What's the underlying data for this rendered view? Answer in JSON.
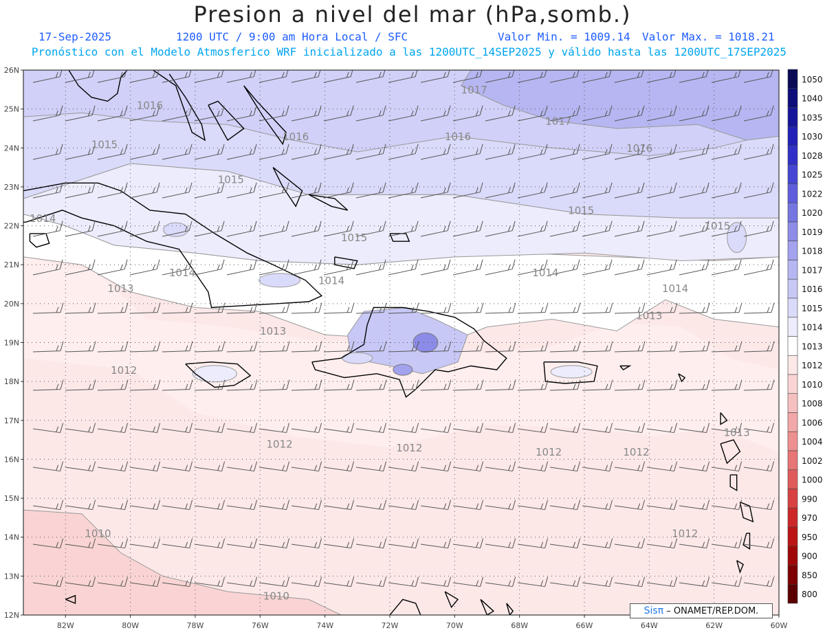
{
  "header": {
    "title": "Presion a nivel del mar (hPa,somb.)",
    "date": "17-Sep-2025",
    "time_info": "1200 UTC / 9:00 am Hora Local / SFC",
    "min_label": "Valor Min. = 1009.14",
    "max_label": "Valor Max. = 1018.21",
    "forecast_info": "Pronóstico con el Modelo Atmosferico WRF inicializado a las 1200UTC_14SEP2025 y válido hasta las  1200UTC_17SEP2025"
  },
  "credit": {
    "brand": "Sisπ",
    "org": "– ONAMET/REP.DOM."
  },
  "map": {
    "lat_labels": [
      "26N",
      "25N",
      "24N",
      "23N",
      "22N",
      "21N",
      "20N",
      "19N",
      "18N",
      "17N",
      "16N",
      "15N",
      "14N",
      "13N",
      "12N"
    ],
    "lon_labels": [
      "82W",
      "80W",
      "78W",
      "76W",
      "74W",
      "72W",
      "70W",
      "68W",
      "66W",
      "64W",
      "62W",
      "60W"
    ],
    "lat_range": [
      12,
      26
    ],
    "lon_range": [
      -83.3,
      -60
    ],
    "contour_labels": [
      {
        "text": "1017",
        "lon": -69.4,
        "lat": 25.4
      },
      {
        "text": "1017",
        "lon": -66.8,
        "lat": 24.6
      },
      {
        "text": "1016",
        "lon": -79.4,
        "lat": 25.0
      },
      {
        "text": "1016",
        "lon": -74.9,
        "lat": 24.2
      },
      {
        "text": "1016",
        "lon": -69.9,
        "lat": 24.2
      },
      {
        "text": "1016",
        "lon": -64.3,
        "lat": 23.9
      },
      {
        "text": "1015",
        "lon": -80.8,
        "lat": 24.0
      },
      {
        "text": "1015",
        "lon": -76.9,
        "lat": 23.1
      },
      {
        "text": "1015",
        "lon": -66.1,
        "lat": 22.3
      },
      {
        "text": "1015",
        "lon": -61.9,
        "lat": 21.9
      },
      {
        "text": "1015",
        "lon": -73.1,
        "lat": 21.6
      },
      {
        "text": "1014",
        "lon": -82.7,
        "lat": 22.1
      },
      {
        "text": "1014",
        "lon": -78.4,
        "lat": 20.7
      },
      {
        "text": "1014",
        "lon": -73.8,
        "lat": 20.5
      },
      {
        "text": "1014",
        "lon": -67.2,
        "lat": 20.7
      },
      {
        "text": "1014",
        "lon": -63.2,
        "lat": 20.3
      },
      {
        "text": "1013",
        "lon": -80.3,
        "lat": 20.3
      },
      {
        "text": "1013",
        "lon": -75.6,
        "lat": 19.2
      },
      {
        "text": "1013",
        "lon": -64.0,
        "lat": 19.6
      },
      {
        "text": "1013",
        "lon": -61.3,
        "lat": 16.6
      },
      {
        "text": "1012",
        "lon": -80.2,
        "lat": 18.2
      },
      {
        "text": "1012",
        "lon": -75.4,
        "lat": 16.3
      },
      {
        "text": "1012",
        "lon": -71.4,
        "lat": 16.2
      },
      {
        "text": "1012",
        "lon": -67.1,
        "lat": 16.1
      },
      {
        "text": "1012",
        "lon": -64.4,
        "lat": 16.1
      },
      {
        "text": "1012",
        "lon": -62.9,
        "lat": 14.0
      },
      {
        "text": "1010",
        "lon": -81.0,
        "lat": 14.0
      },
      {
        "text": "1010",
        "lon": -75.5,
        "lat": 12.4
      }
    ]
  },
  "colorbar": {
    "levels": [
      "1050",
      "1040",
      "1035",
      "1030",
      "1028",
      "1025",
      "1022",
      "1020",
      "1019",
      "1018",
      "1017",
      "1016",
      "1015",
      "1014",
      "1013",
      "1012",
      "1010",
      "1008",
      "1006",
      "1004",
      "1002",
      "1000",
      "990",
      "970",
      "950",
      "900",
      "850",
      "800"
    ],
    "colors": [
      "#0a0a55",
      "#0e0e7a",
      "#16169a",
      "#2020b8",
      "#3030c8",
      "#4646d4",
      "#5e5edc",
      "#7676e2",
      "#8c8ce8",
      "#a2a2ee",
      "#b6b6f2",
      "#c8c8f6",
      "#dadafa",
      "#ececfc",
      "#ffffff",
      "#fde8e8",
      "#fad4d4",
      "#f6c0c0",
      "#f2a8a8",
      "#ee9090",
      "#e87676",
      "#e05c5c",
      "#d84242",
      "#cc2828",
      "#bc1414",
      "#a00808",
      "#7e0000",
      "#5a0000"
    ]
  }
}
